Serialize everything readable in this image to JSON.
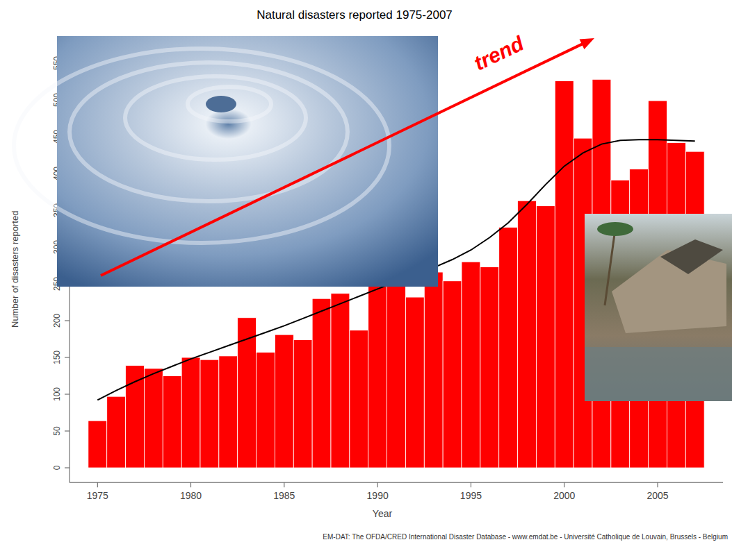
{
  "chart_data": {
    "type": "bar",
    "title": "Natural disasters reported 1975-2007",
    "y_label": "Number of disasters reported",
    "x_label": "Year",
    "source": "EM-DAT: The OFDA/CRED International Disaster Database - www.emdat.be - Université Catholique de Louvain, Brussels - Belgium",
    "annotations": [
      {
        "text": "trend",
        "color": "#ff0000"
      }
    ],
    "x": [
      1975,
      1976,
      1977,
      1978,
      1979,
      1980,
      1981,
      1982,
      1983,
      1984,
      1985,
      1986,
      1987,
      1988,
      1989,
      1990,
      1991,
      1992,
      1993,
      1994,
      1995,
      1996,
      1997,
      1998,
      1999,
      2000,
      2001,
      2002,
      2003,
      2004,
      2005,
      2006,
      2007
    ],
    "series": [
      {
        "type": "bar",
        "color": "#ff0000",
        "values": [
          64,
          97,
          139,
          135,
          125,
          150,
          147,
          152,
          204,
          157,
          181,
          174,
          230,
          237,
          187,
          260,
          262,
          232,
          266,
          254,
          280,
          273,
          327,
          363,
          356,
          526,
          448,
          528,
          391,
          406,
          499,
          442,
          430
        ]
      },
      {
        "type": "line",
        "color": "#000000",
        "values": [
          92,
          105,
          117,
          128,
          138,
          148,
          157,
          166,
          175,
          184,
          193,
          203,
          213,
          223,
          233,
          243,
          253,
          262,
          272,
          283,
          296,
          313,
          333,
          358,
          385,
          410,
          428,
          440,
          445,
          446,
          446,
          445,
          444
        ]
      }
    ],
    "xlim": [
      1973.5,
      2008.5
    ],
    "xticks": [
      1975,
      1980,
      1985,
      1990,
      1995,
      2000,
      2005
    ],
    "ylim": [
      -20,
      560
    ],
    "yticks": [
      0,
      50,
      100,
      150,
      200,
      250,
      300,
      350,
      400,
      450,
      500,
      550
    ],
    "grid": false
  }
}
